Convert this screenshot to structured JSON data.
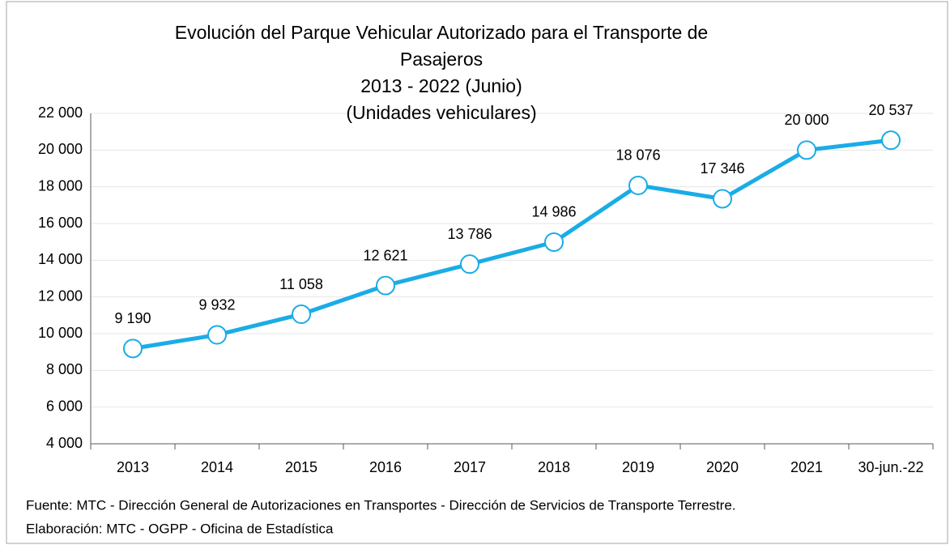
{
  "chart_data": {
    "type": "line",
    "title": [
      "Evolución del Parque Vehicular Autorizado para el Transporte  de",
      "Pasajeros",
      "2013 - 2022 (Junio)",
      "(Unidades vehiculares)"
    ],
    "categories": [
      "2013",
      "2014",
      "2015",
      "2016",
      "2017",
      "2018",
      "2019",
      "2020",
      "2021",
      "30-jun.-22"
    ],
    "values": [
      9190,
      9932,
      11058,
      12621,
      13786,
      14986,
      18076,
      17346,
      20000,
      20537
    ],
    "value_labels": [
      "9 190",
      "9 932",
      "11 058",
      "12 621",
      "13 786",
      "14 986",
      "18 076",
      "17 346",
      "20 000",
      "20 537"
    ],
    "color": "#1aace6",
    "ylim": [
      4000,
      22000
    ],
    "yticks": [
      {
        "value": 4000,
        "label": "4 000"
      },
      {
        "value": 6000,
        "label": "6 000"
      },
      {
        "value": 8000,
        "label": "8 000"
      },
      {
        "value": 10000,
        "label": "10 000"
      },
      {
        "value": 12000,
        "label": "12 000"
      },
      {
        "value": 14000,
        "label": "14 000"
      },
      {
        "value": 16000,
        "label": "16 000"
      },
      {
        "value": 18000,
        "label": "18 000"
      },
      {
        "value": 20000,
        "label": "20 000"
      },
      {
        "value": 22000,
        "label": "22 000"
      }
    ],
    "grid": true,
    "notes": [
      "Fuente: MTC - Dirección General de Autorizaciones en Transportes - Dirección de Servicios de Transporte Terrestre.",
      "Elaboración: MTC - OGPP - Oficina de Estadística"
    ]
  }
}
